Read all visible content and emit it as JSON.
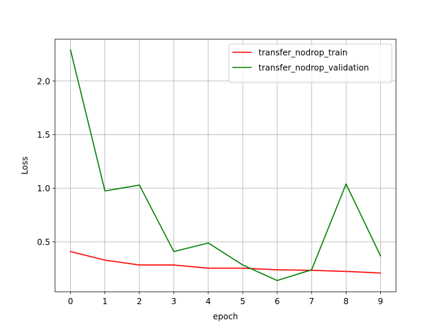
{
  "chart_data": {
    "type": "line",
    "xlabel": "epoch",
    "ylabel": "Loss",
    "x": [
      0,
      1,
      2,
      3,
      4,
      5,
      6,
      7,
      8,
      9
    ],
    "xticks": [
      "0",
      "1",
      "2",
      "3",
      "4",
      "5",
      "6",
      "7",
      "8",
      "9"
    ],
    "yticks": [
      "0.5",
      "1.0",
      "1.5",
      "2.0"
    ],
    "ytick_values": [
      0.5,
      1.0,
      1.5,
      2.0
    ],
    "xlim": [
      -0.45,
      9.45
    ],
    "ylim": [
      0.035,
      2.39
    ],
    "grid": true,
    "legend_position": "upper-right",
    "series": [
      {
        "name": "transfer_nodrop_train",
        "color": "#ff0000",
        "values": [
          0.41,
          0.33,
          0.285,
          0.285,
          0.255,
          0.255,
          0.24,
          0.235,
          0.225,
          0.21
        ]
      },
      {
        "name": "transfer_nodrop_validation",
        "color": "#008000",
        "values": [
          2.29,
          0.975,
          1.03,
          0.41,
          0.49,
          0.285,
          0.14,
          0.24,
          1.04,
          0.37
        ]
      }
    ]
  }
}
